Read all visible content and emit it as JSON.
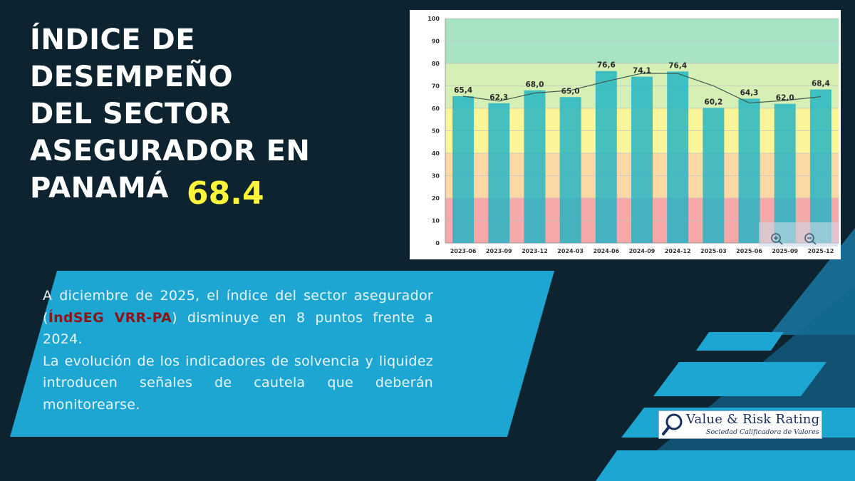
{
  "title_lines": [
    "ÍNDICE DE DESEMPEÑO",
    "DEL SECTOR",
    "ASEGURADOR EN",
    "PANAMÁ"
  ],
  "current_score": "68.4",
  "description": {
    "p1_before": "A diciembre de 2025, el índice del sector asegurador (",
    "p1_highlight": "ÍndSEG VRR-PA",
    "p1_after": ") disminuye en 8 puntos frente a 2024.",
    "p2": "La evolución de los indicadores de solvencia y liquidez introducen señales de cautela que deberán monitorearse."
  },
  "logo": {
    "name": "Value & Risk Rating",
    "subtitle": "Sociedad Calificadora de Valores"
  },
  "colors": {
    "background": "#0e2330",
    "accent_blue": "#1ea6d3",
    "title_white": "#ffffff",
    "score_yellow": "#fff53a",
    "highlight_red": "#8c1414",
    "bar_teal": "#25b9c7",
    "band_red": "#f7a8a8",
    "band_orange": "#fcd8a4",
    "band_yellow": "#fbf59a",
    "band_lightgreen": "#d6efb4",
    "band_green": "#a8e3c3"
  },
  "chart_data": {
    "type": "bar",
    "categories": [
      "2023-06",
      "2023-09",
      "2023-12",
      "2024-03",
      "2024-06",
      "2024-09",
      "2024-12",
      "2025-03",
      "2025-06",
      "2025-09",
      "2025-12"
    ],
    "values": [
      65.4,
      62.3,
      68.0,
      65.0,
      76.6,
      74.1,
      76.4,
      60.2,
      64.3,
      62.0,
      68.4
    ],
    "value_labels": [
      "65,4",
      "62,3",
      "68,0",
      "65,0",
      "76,6",
      "74,1",
      "76,4",
      "60,2",
      "64,3",
      "62,0",
      "68,4"
    ],
    "trend_line": [
      65.4,
      63.2,
      66.8,
      68.0,
      72.0,
      75.6,
      75.5,
      70.0,
      62.4,
      63.5,
      65.2
    ],
    "y_ticks": [
      0,
      10,
      20,
      30,
      40,
      50,
      60,
      70,
      80,
      90,
      100
    ],
    "ylim": [
      0,
      100
    ],
    "bands": [
      {
        "from": 0,
        "to": 20,
        "color": "#f7a8a8"
      },
      {
        "from": 20,
        "to": 40,
        "color": "#fcd8a4"
      },
      {
        "from": 40,
        "to": 60,
        "color": "#fbf59a"
      },
      {
        "from": 60,
        "to": 80,
        "color": "#d6efb4"
      },
      {
        "from": 80,
        "to": 100,
        "color": "#a8e3c3"
      }
    ],
    "xlabel": "",
    "ylabel": "",
    "grid": true
  }
}
